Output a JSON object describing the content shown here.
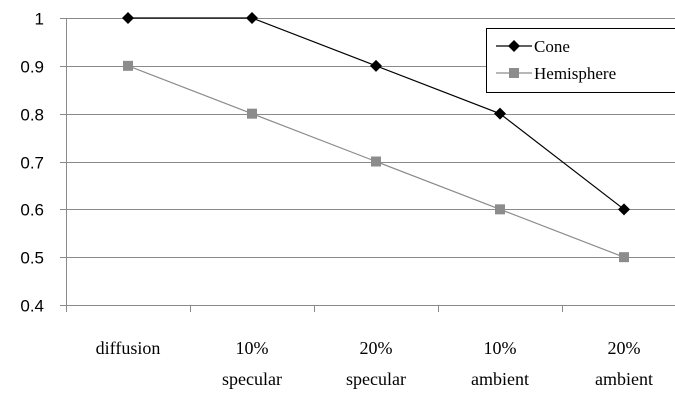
{
  "chart_data": {
    "type": "line",
    "categories": [
      [
        "diffusion"
      ],
      [
        "10%",
        "specular"
      ],
      [
        "20%",
        "specular"
      ],
      [
        "10%",
        "ambient"
      ],
      [
        "20%",
        "ambient"
      ]
    ],
    "series": [
      {
        "name": "Cone",
        "values": [
          1.0,
          1.0,
          0.9,
          0.8,
          0.6
        ],
        "color": "#000000",
        "marker": "diamond"
      },
      {
        "name": "Hemisphere",
        "values": [
          0.9,
          0.8,
          0.7,
          0.6,
          0.5
        ],
        "color": "#8c8c8c",
        "marker": "square"
      }
    ],
    "ylim": [
      0.4,
      1
    ],
    "yticks": [
      0.4,
      0.5,
      0.6,
      0.7,
      0.8,
      0.9,
      1
    ],
    "ytick_labels": [
      "0.4",
      "0.5",
      "0.6",
      "0.7",
      "0.8",
      "0.9",
      "1"
    ],
    "grid": "horizontal",
    "legend_position": "top-right",
    "title": "",
    "xlabel": "",
    "ylabel": ""
  }
}
